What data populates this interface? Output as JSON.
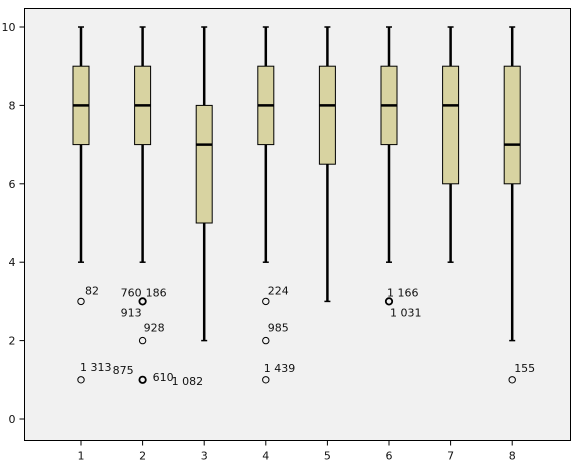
{
  "chart_data": {
    "type": "boxplot",
    "title": "",
    "xlabel": "",
    "ylabel": "",
    "ylim": [
      -0.5,
      10.5
    ],
    "y_ticks": [
      0,
      2,
      4,
      6,
      8,
      10
    ],
    "categories": [
      "1",
      "2",
      "3",
      "4",
      "5",
      "6",
      "7",
      "8"
    ],
    "grid": false,
    "colors": {
      "box_fill": "#d8d3a1",
      "plot_bg": "#f1f1f1",
      "stroke": "#000000"
    },
    "boxes": [
      {
        "category": "1",
        "whisker_low": 4,
        "q1": 7,
        "median": 8,
        "q3": 9,
        "whisker_high": 10,
        "outliers": [
          {
            "value": 3,
            "labels": [
              "82"
            ]
          },
          {
            "value": 1,
            "labels": [
              "1 313"
            ]
          }
        ]
      },
      {
        "category": "2",
        "whisker_low": 4,
        "q1": 7,
        "median": 8,
        "q3": 9,
        "whisker_high": 10,
        "outliers": [
          {
            "value": 3,
            "labels": [
              "760",
              "186",
              "913"
            ]
          },
          {
            "value": 2,
            "labels": [
              "928"
            ]
          },
          {
            "value": 1,
            "labels": [
              "875",
              "610",
              "1 082"
            ]
          }
        ]
      },
      {
        "category": "3",
        "whisker_low": 2,
        "q1": 5,
        "median": 7,
        "q3": 8,
        "whisker_high": 10,
        "outliers": []
      },
      {
        "category": "4",
        "whisker_low": 4,
        "q1": 7,
        "median": 8,
        "q3": 9,
        "whisker_high": 10,
        "outliers": [
          {
            "value": 3,
            "labels": [
              "224"
            ]
          },
          {
            "value": 2,
            "labels": [
              "985"
            ]
          },
          {
            "value": 1,
            "labels": [
              "1 439"
            ]
          }
        ]
      },
      {
        "category": "5",
        "whisker_low": 3,
        "q1": 6.5,
        "median": 8,
        "q3": 9,
        "whisker_high": 10,
        "outliers": []
      },
      {
        "category": "6",
        "whisker_low": 4,
        "q1": 7,
        "median": 8,
        "q3": 9,
        "whisker_high": 10,
        "outliers": [
          {
            "value": 3,
            "labels": [
              "1 166",
              "1 031"
            ]
          }
        ]
      },
      {
        "category": "7",
        "whisker_low": 4,
        "q1": 6,
        "median": 8,
        "q3": 9,
        "whisker_high": 10,
        "outliers": []
      },
      {
        "category": "8",
        "whisker_low": 2,
        "q1": 6,
        "median": 7,
        "q3": 9,
        "whisker_high": 10,
        "outliers": [
          {
            "value": 1,
            "labels": [
              "155"
            ]
          }
        ]
      }
    ]
  }
}
